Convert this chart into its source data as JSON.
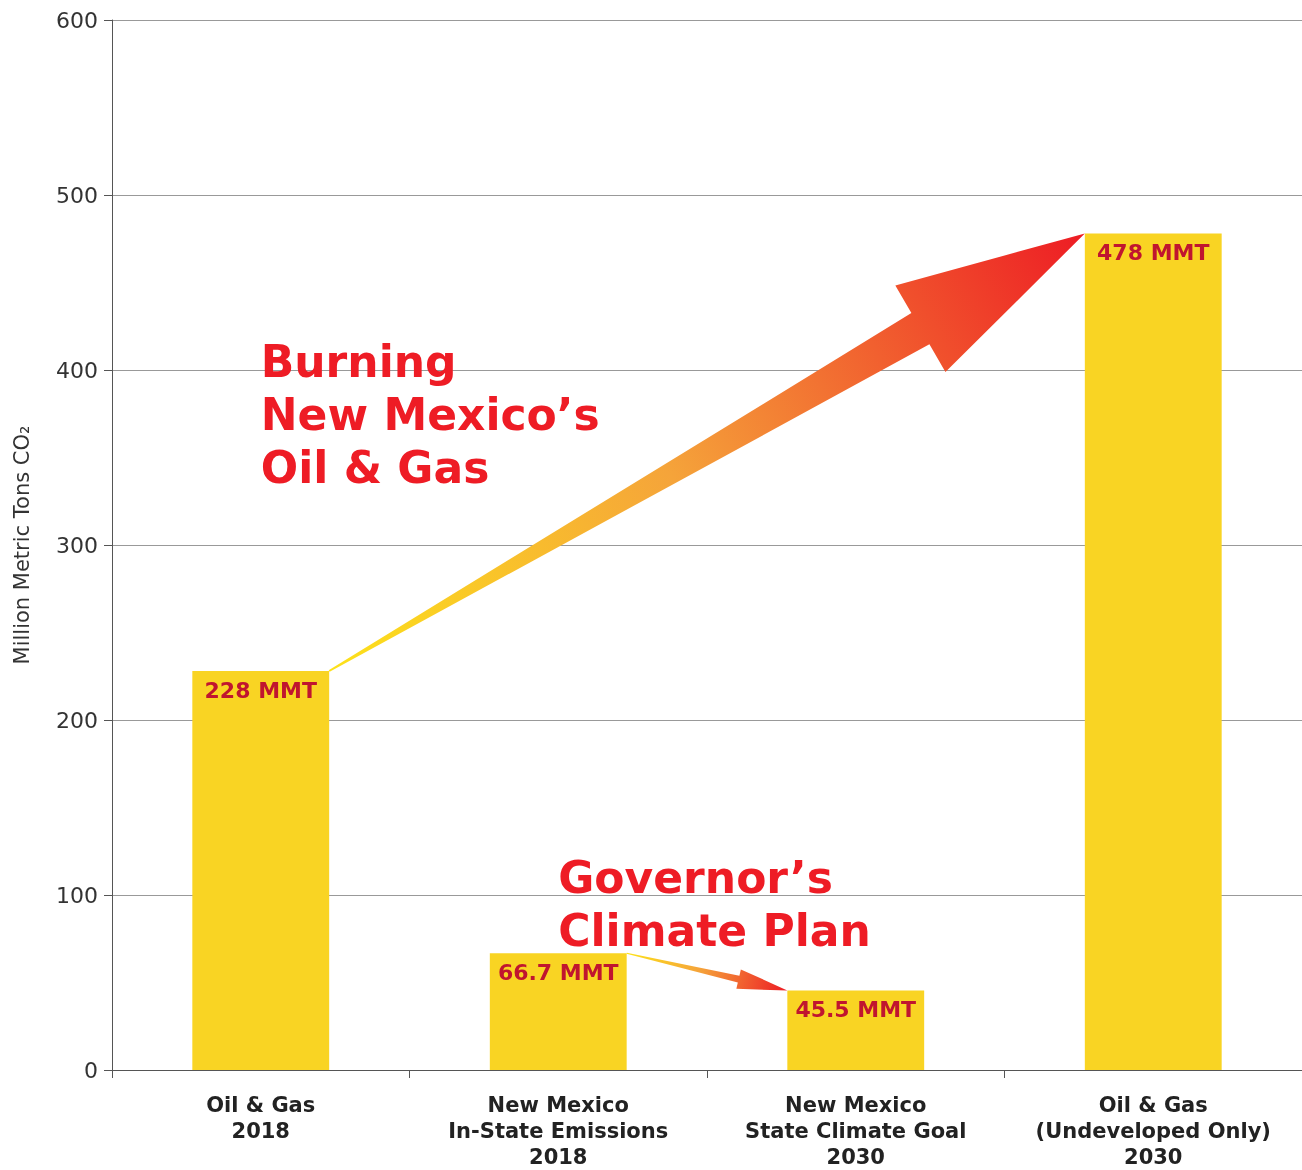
{
  "chart_data": {
    "type": "bar",
    "ylabel": "Million Metric Tons CO₂",
    "categories": [
      "Oil & Gas\n2018",
      "New Mexico\nIn-State Emissions\n2018",
      "New Mexico\nState Climate Goal\n2030",
      "Oil & Gas\n(Undeveloped Only)\n2030"
    ],
    "values": [
      228,
      66.7,
      45.5,
      478
    ],
    "color": "#f9d423",
    "value_labels": [
      "228 MMT",
      "66.7 MMT",
      "45.5 MMT",
      "478 MMT"
    ],
    "ylim": [
      0,
      600
    ],
    "yticks": [
      0,
      100,
      200,
      300,
      400,
      500,
      600
    ],
    "grid": "y",
    "annotations": [
      "Burning\nNew Mexico’s\nOil & Gas",
      "Governor’s\nClimate Plan"
    ]
  }
}
